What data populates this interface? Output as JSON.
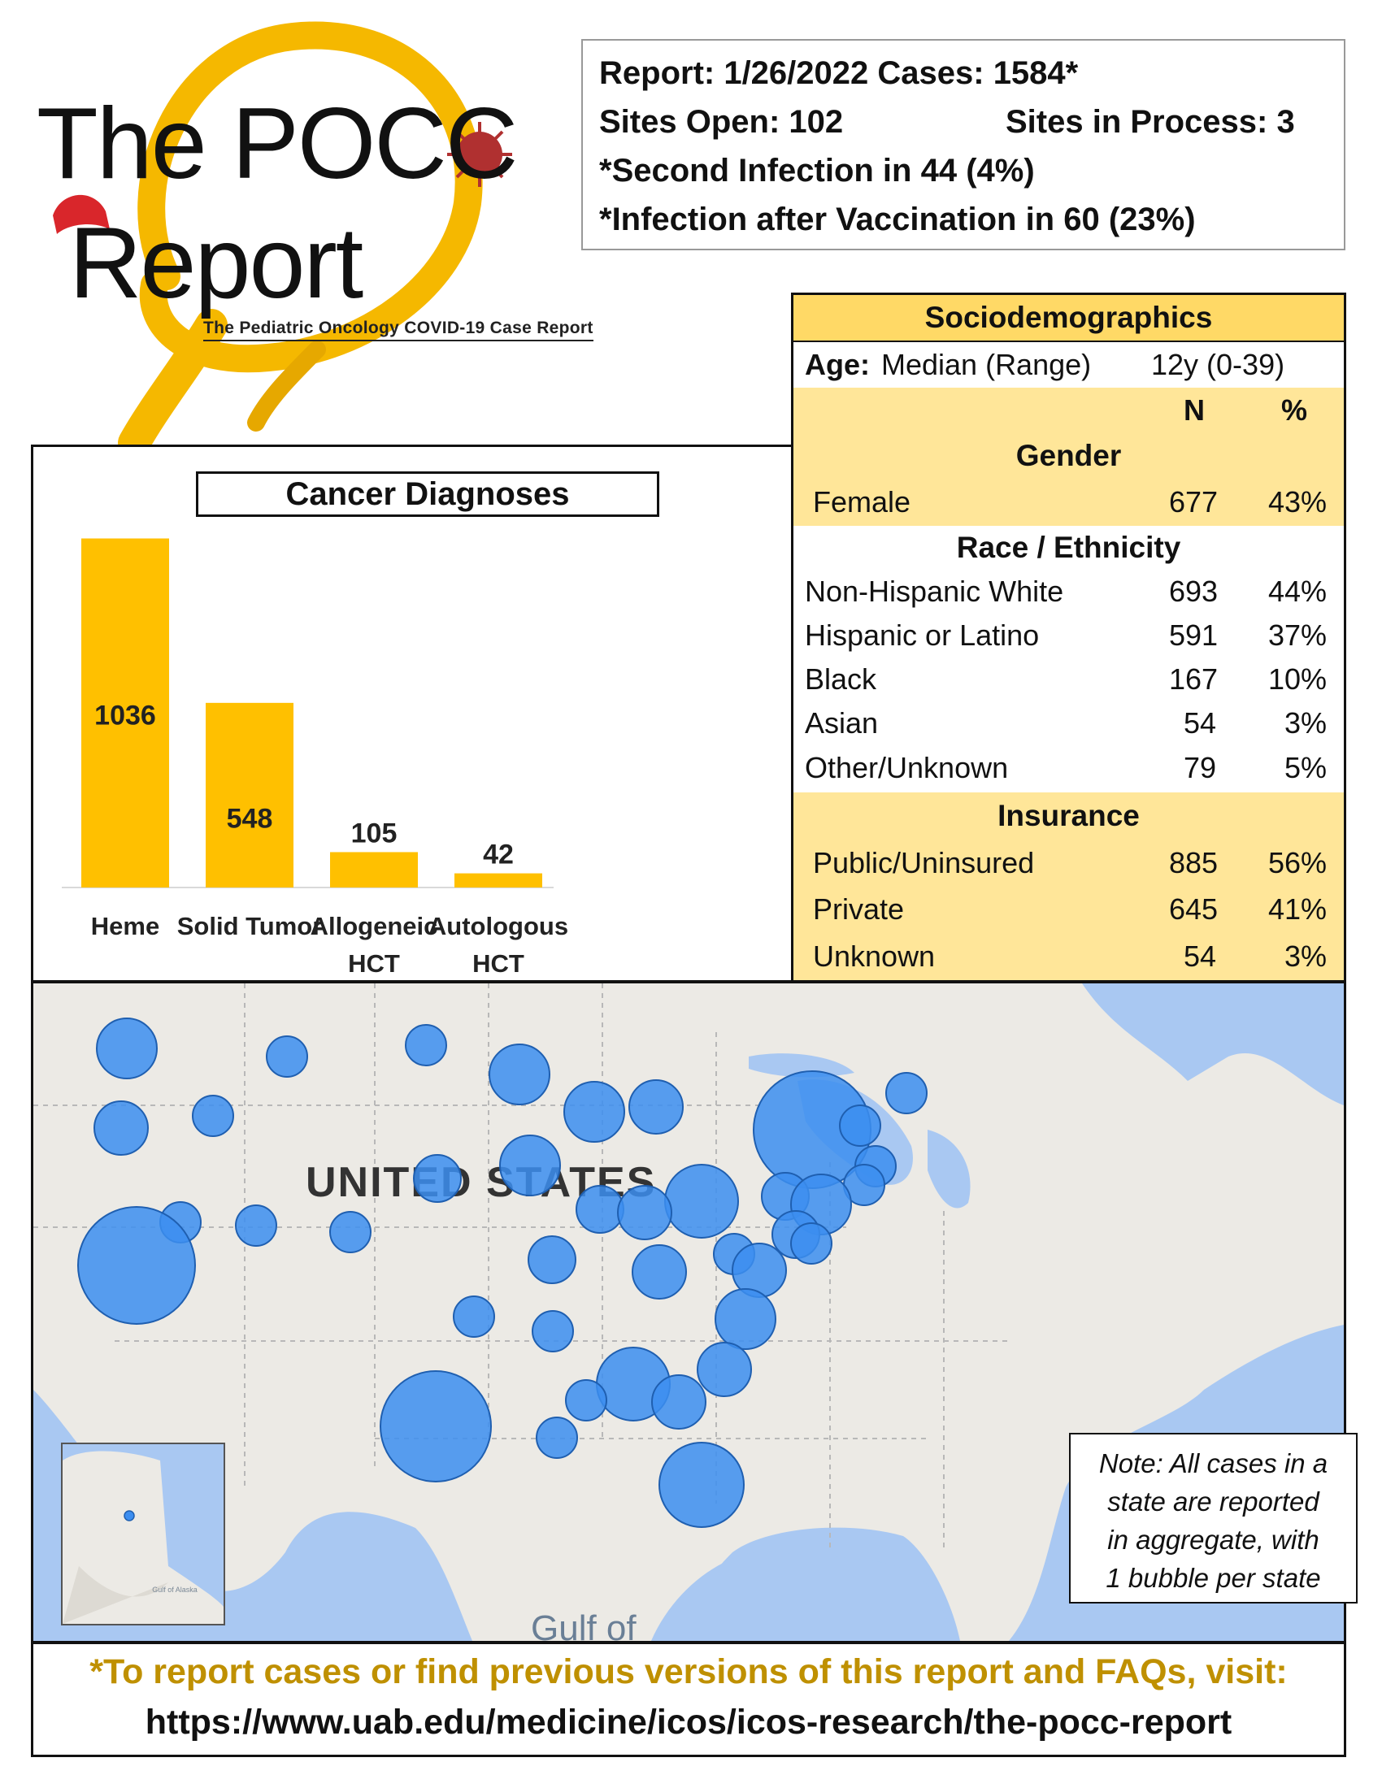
{
  "logo": {
    "line1": "The POCC",
    "line2": "Report",
    "subtitle": "The Pediatric Oncology COVID-19 Case Report"
  },
  "summary": {
    "line1": "Report: 1/26/2022 Cases: 1584*",
    "sites_open": "Sites Open: 102",
    "sites_in_process": "Sites in Process: 3",
    "line3": "*Second Infection in 44 (4%)",
    "line4": "*Infection after Vaccination in  60 (23%)"
  },
  "chart_data": {
    "type": "bar",
    "title": "Cancer Diagnoses",
    "categories": [
      [
        "Heme"
      ],
      [
        "Solid Tumor"
      ],
      [
        "Allogeneic",
        "HCT"
      ],
      [
        "Autologous",
        "HCT"
      ]
    ],
    "values": [
      1036,
      548,
      105,
      42
    ],
    "value_labels": [
      "1036",
      "548",
      "105",
      "42"
    ],
    "color": "#ffc000",
    "ylim": [
      0,
      1100
    ],
    "grid": false
  },
  "socio": {
    "title": "Sociodemographics",
    "age_label": "Age:",
    "age_desc": "Median (Range)",
    "age_value": "12y (0-39)",
    "col_n": "N",
    "col_pct": "%",
    "gender_head": "Gender",
    "female_label": "Female",
    "female_n": "677",
    "female_pct": "43%",
    "race_head": "Race / Ethnicity",
    "race": [
      {
        "label": "Non-Hispanic White",
        "n": "693",
        "pct": "44%"
      },
      {
        "label": "Hispanic or Latino",
        "n": "591",
        "pct": "37%"
      },
      {
        "label": "Black",
        "n": "167",
        "pct": "10%"
      },
      {
        "label": "Asian",
        "n": "54",
        "pct": "3%"
      },
      {
        "label": "Other/Unknown",
        "n": "79",
        "pct": "5%"
      }
    ],
    "insurance_head": "Insurance",
    "insurance": [
      {
        "label": "Public/Uninsured",
        "n": "885",
        "pct": "56%"
      },
      {
        "label": "Private",
        "n": "645",
        "pct": "41%"
      },
      {
        "label": "Unknown",
        "n": "54",
        "pct": "3%"
      }
    ]
  },
  "map": {
    "country_label": "UNITED STATES",
    "gulf_label": "Gulf of",
    "alaska_gulf_label": "Gulf of Alaska",
    "note": [
      "Note: All cases in a",
      "state are reported",
      "in aggregate, with",
      "1 bubble per state"
    ],
    "bubble_color": "#3c8ef0"
  },
  "footer": {
    "line1": "*To report cases or find previous versions of this report and FAQs, visit:",
    "line2": "https://www.uab.edu/medicine/icos/icos-research/the-pocc-report"
  }
}
